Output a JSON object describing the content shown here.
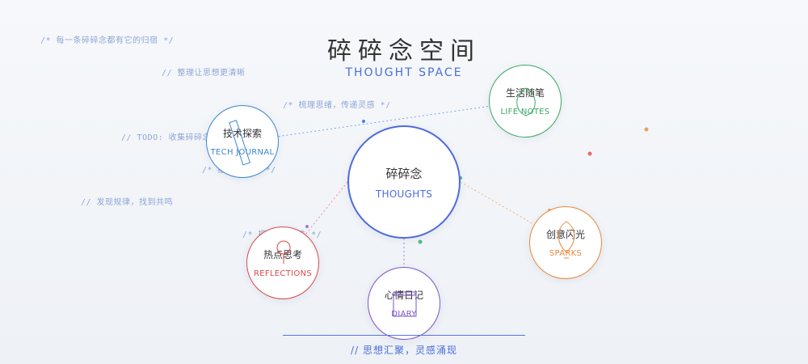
{
  "header": {
    "title": "碎碎念空间",
    "subtitle": "THOUGHT SPACE"
  },
  "comments": [
    {
      "text": "/*  每一条碎碎念都有它的归宿  */"
    },
    {
      "text": "//  整理让思想更清晰"
    },
    {
      "text": "/*  梳理思绪，传递灵感  */"
    },
    {
      "text": "//  TODO: 收集碎碎念"
    },
    {
      "text": "/*        结构化表达  */"
    },
    {
      "text": "//  发现规律，找到共鸣"
    },
    {
      "text": "/*  把        串成珍珠  */"
    }
  ],
  "nodes": {
    "center": {
      "cn": "碎碎念",
      "en": "THOUGHTS",
      "color": "#4f6be0"
    },
    "tech": {
      "cn": "技术探索",
      "en": "TECH JOURNAL",
      "color": "#3f86d0"
    },
    "life": {
      "cn": "生活随笔",
      "en": "LIFE NOTES",
      "color": "#3aa865"
    },
    "ideas": {
      "cn": "创意闪光",
      "en": "SPARKS",
      "color": "#e8893a"
    },
    "hot": {
      "cn": "热点思考",
      "en": "REFLECTIONS",
      "color": "#d94a4a"
    },
    "diary": {
      "cn": "心情日记",
      "en": "DIARY",
      "color": "#7a55c8"
    }
  },
  "footer": {
    "text": "//  思想汇聚，灵感涌现"
  }
}
